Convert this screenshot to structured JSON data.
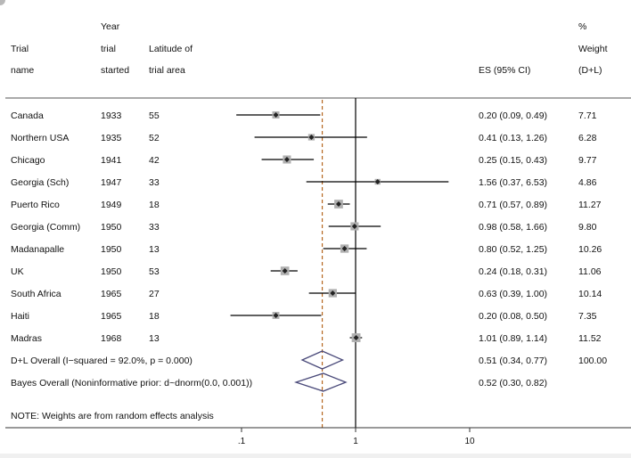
{
  "chart_data": {
    "type": "forest",
    "header": {
      "trial_col": [
        "",
        "Trial",
        "name"
      ],
      "year_col": [
        "Year",
        "trial",
        "started"
      ],
      "lat_col": [
        "",
        "Latitude of",
        "trial area"
      ],
      "es_col": [
        "",
        "",
        "ES (95% CI)"
      ],
      "weight_col": [
        "%",
        "Weight",
        "(D+L)"
      ]
    },
    "studies": [
      {
        "name": "Canada",
        "year": "1933",
        "latitude": "55",
        "es": 0.2,
        "lo": 0.09,
        "hi": 0.49,
        "es_text": "0.20 (0.09, 0.49)",
        "weight": 7.71,
        "weight_text": "7.71"
      },
      {
        "name": "Northern USA",
        "year": "1935",
        "latitude": "52",
        "es": 0.41,
        "lo": 0.13,
        "hi": 1.26,
        "es_text": "0.41 (0.13, 1.26)",
        "weight": 6.28,
        "weight_text": "6.28"
      },
      {
        "name": "Chicago",
        "year": "1941",
        "latitude": "42",
        "es": 0.25,
        "lo": 0.15,
        "hi": 0.43,
        "es_text": "0.25 (0.15, 0.43)",
        "weight": 9.77,
        "weight_text": "9.77"
      },
      {
        "name": "Georgia (Sch)",
        "year": "1947",
        "latitude": "33",
        "es": 1.56,
        "lo": 0.37,
        "hi": 6.53,
        "es_text": "1.56 (0.37, 6.53)",
        "weight": 4.86,
        "weight_text": "4.86"
      },
      {
        "name": "Puerto Rico",
        "year": "1949",
        "latitude": "18",
        "es": 0.71,
        "lo": 0.57,
        "hi": 0.89,
        "es_text": "0.71 (0.57, 0.89)",
        "weight": 11.27,
        "weight_text": "11.27"
      },
      {
        "name": "Georgia (Comm)",
        "year": "1950",
        "latitude": "33",
        "es": 0.98,
        "lo": 0.58,
        "hi": 1.66,
        "es_text": "0.98 (0.58, 1.66)",
        "weight": 9.8,
        "weight_text": "9.80"
      },
      {
        "name": "Madanapalle",
        "year": "1950",
        "latitude": "13",
        "es": 0.8,
        "lo": 0.52,
        "hi": 1.25,
        "es_text": "0.80 (0.52, 1.25)",
        "weight": 10.26,
        "weight_text": "10.26"
      },
      {
        "name": "UK",
        "year": "1950",
        "latitude": "53",
        "es": 0.24,
        "lo": 0.18,
        "hi": 0.31,
        "es_text": "0.24 (0.18, 0.31)",
        "weight": 11.06,
        "weight_text": "11.06"
      },
      {
        "name": "South Africa",
        "year": "1965",
        "latitude": "27",
        "es": 0.63,
        "lo": 0.39,
        "hi": 1.0,
        "es_text": "0.63 (0.39, 1.00)",
        "weight": 10.14,
        "weight_text": "10.14"
      },
      {
        "name": "Haiti",
        "year": "1965",
        "latitude": "18",
        "es": 0.2,
        "lo": 0.08,
        "hi": 0.5,
        "es_text": "0.20 (0.08, 0.50)",
        "weight": 7.35,
        "weight_text": "7.35"
      },
      {
        "name": "Madras",
        "year": "1968",
        "latitude": "13",
        "es": 1.01,
        "lo": 0.89,
        "hi": 1.14,
        "es_text": "1.01 (0.89, 1.14)",
        "weight": 11.52,
        "weight_text": "11.52"
      }
    ],
    "overall": [
      {
        "label": "D+L Overall  (I−squared = 92.0%, p = 0.000)",
        "es": 0.51,
        "lo": 0.34,
        "hi": 0.77,
        "es_text": "0.51 (0.34, 0.77)",
        "weight_text": "100.00"
      },
      {
        "label": "Bayes Overall (Noninformative prior: d~dnorm(0.0, 0.001))",
        "es": 0.52,
        "lo": 0.3,
        "hi": 0.82,
        "es_text": "0.52 (0.30, 0.82)",
        "weight_text": ""
      }
    ],
    "null_line": 1,
    "pooled_line": 0.51,
    "x_scale": "log",
    "x_ticks": [
      0.1,
      1,
      10
    ],
    "x_tick_labels": [
      ".1",
      "1",
      "10"
    ],
    "note": "NOTE: Weights are from random effects analysis",
    "colors": {
      "marker_box": "#b0b0b0",
      "line": "#000000",
      "pooled_line": "#b5651d",
      "diamond": "#4a4a7a"
    }
  }
}
